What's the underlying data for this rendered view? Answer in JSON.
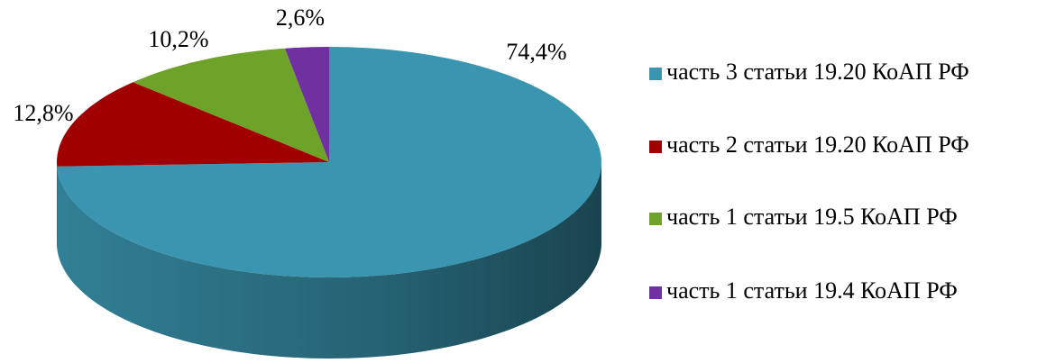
{
  "chart_data": {
    "type": "pie",
    "categories": [
      "часть 3 статьи 19.20 КоАП РФ",
      "часть 2 статьи 19.20 КоАП РФ",
      "часть 1 статьи 19.5 КоАП РФ",
      "часть 1 статьи 19.4 КоАП РФ"
    ],
    "values": [
      74.4,
      12.8,
      10.2,
      2.6
    ],
    "value_labels": [
      "74,4%",
      "12,8%",
      "10,2%",
      "2,6%"
    ],
    "colors": [
      "#3a96b0",
      "#a00000",
      "#6ea32a",
      "#7030a0"
    ],
    "legend": "right"
  }
}
